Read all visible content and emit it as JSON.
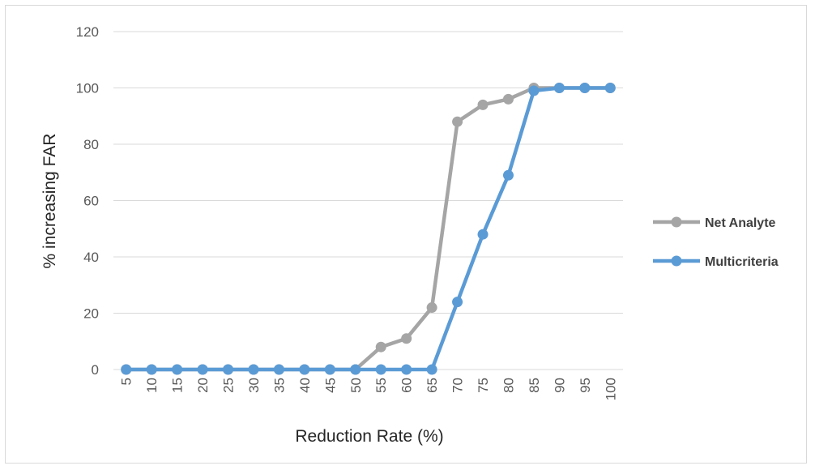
{
  "chart_data": {
    "type": "line",
    "title": "",
    "xlabel": "Reduction Rate (%)",
    "ylabel": "% increasing FAR",
    "categories": [
      "5",
      "10",
      "15",
      "20",
      "25",
      "30",
      "35",
      "40",
      "45",
      "50",
      "55",
      "60",
      "65",
      "70",
      "75",
      "80",
      "85",
      "90",
      "95",
      "100"
    ],
    "ylim": [
      0,
      120
    ],
    "yticks": [
      0,
      20,
      40,
      60,
      80,
      100,
      120
    ],
    "grid": true,
    "legend_position": "right",
    "series": [
      {
        "name": "Net Analyte",
        "color": "#a5a5a5",
        "values": [
          0,
          0,
          0,
          0,
          0,
          0,
          0,
          0,
          0,
          0,
          8,
          11,
          22,
          88,
          94,
          96,
          100,
          100,
          100,
          100
        ]
      },
      {
        "name": "Multicriteria",
        "color": "#5b9bd5",
        "values": [
          0,
          0,
          0,
          0,
          0,
          0,
          0,
          0,
          0,
          0,
          0,
          0,
          0,
          24,
          48,
          69,
          99,
          100,
          100,
          100
        ]
      }
    ]
  }
}
